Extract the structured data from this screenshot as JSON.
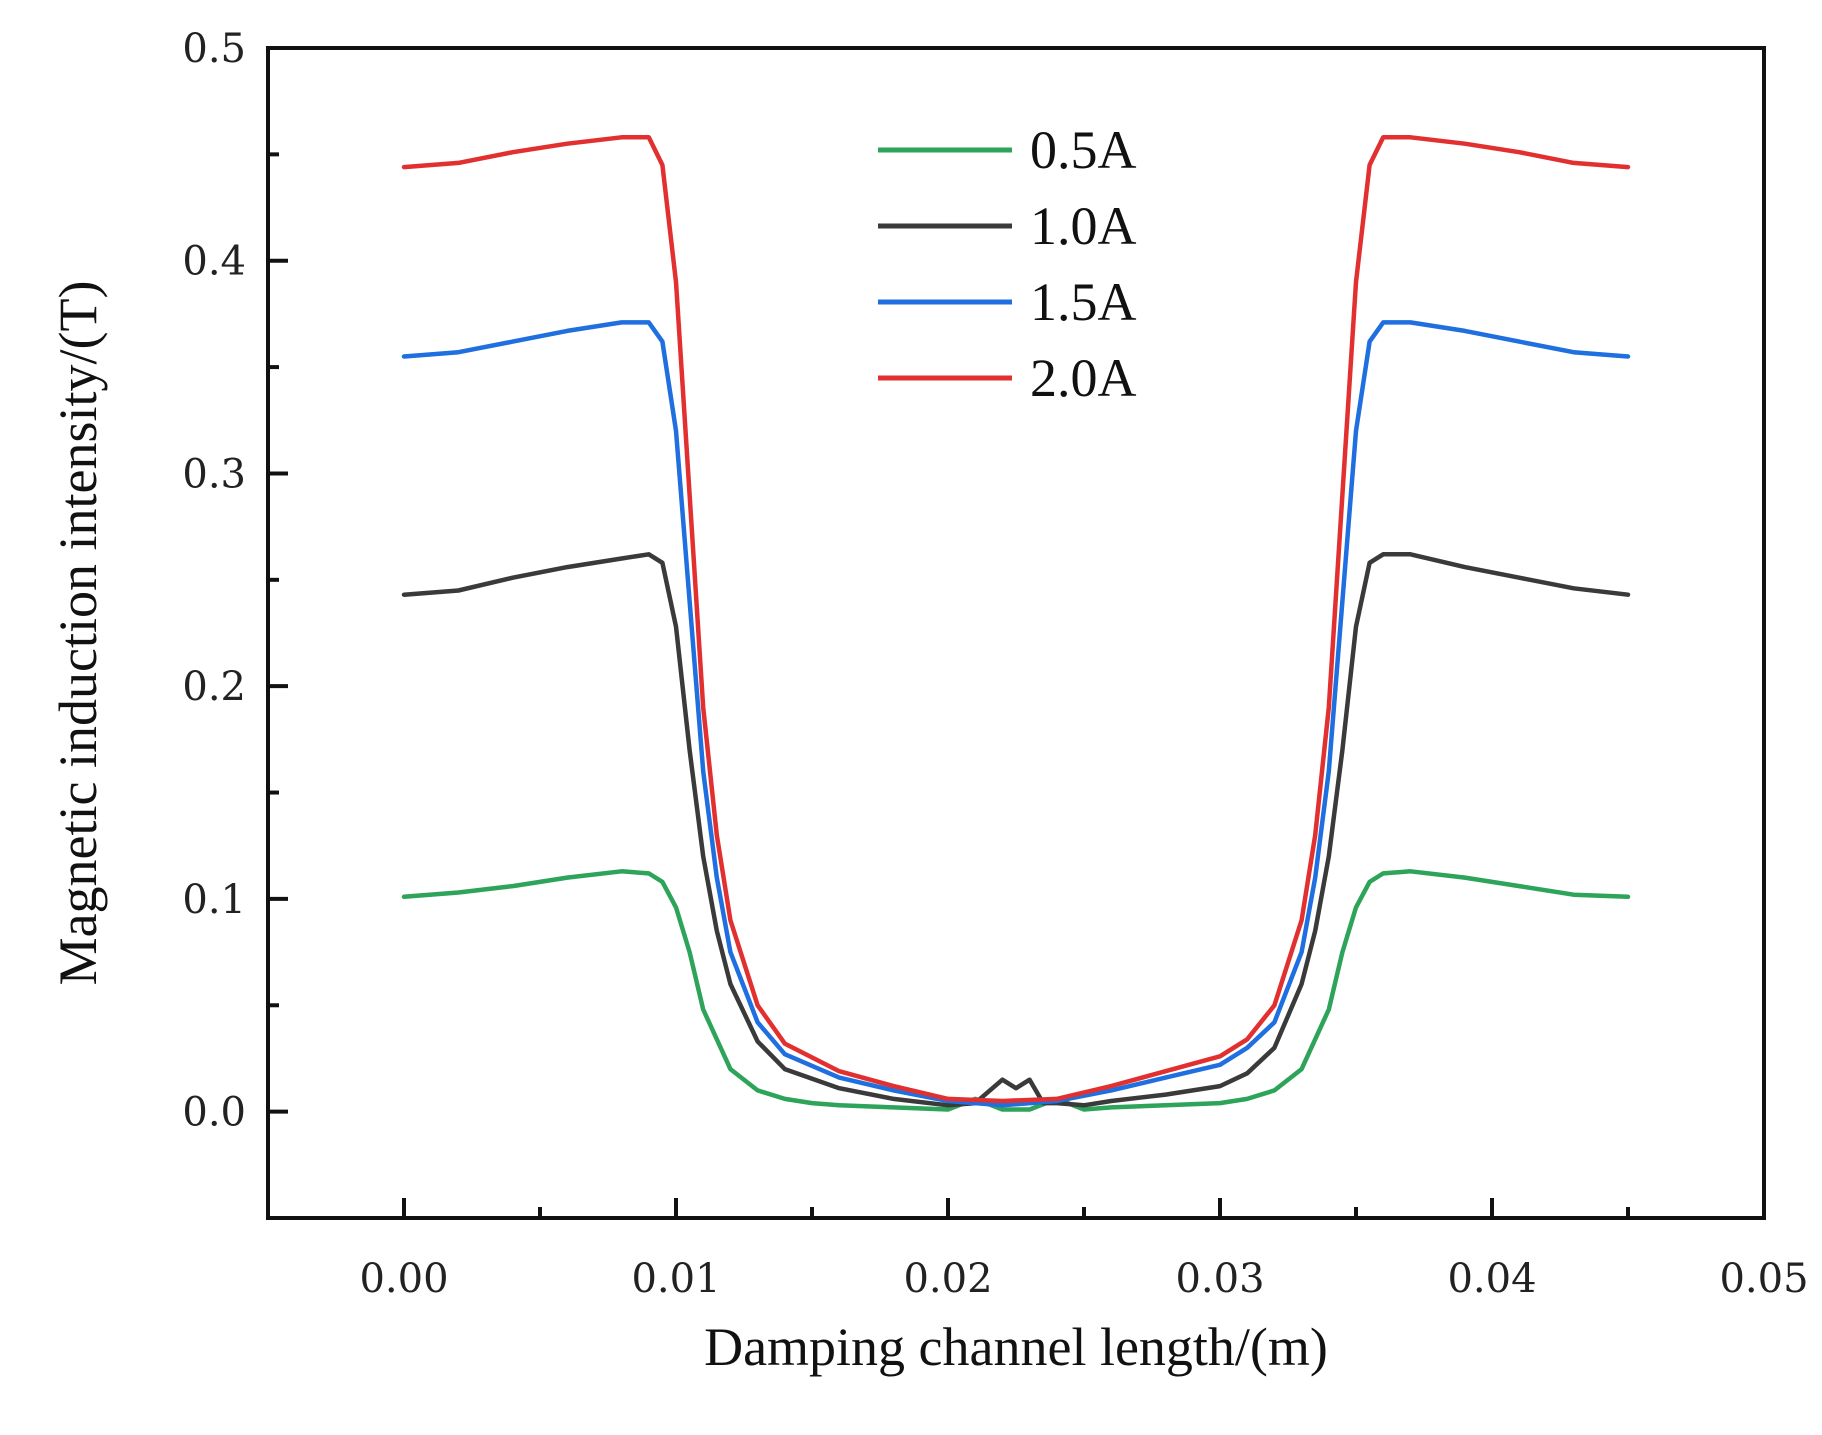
{
  "chart_data": {
    "type": "line",
    "title": "",
    "xlabel": "Damping channel length/(m)",
    "ylabel": "Magnetic induction intensity/(T)",
    "xlim": [
      -0.005,
      0.05
    ],
    "ylim": [
      -0.05,
      0.5
    ],
    "x_ticks": [
      0.0,
      0.01,
      0.02,
      0.03,
      0.04,
      0.05
    ],
    "x_tick_labels": [
      "0.00",
      "0.01",
      "0.02",
      "0.03",
      "0.04",
      "0.05"
    ],
    "y_ticks": [
      0.0,
      0.1,
      0.2,
      0.3,
      0.4,
      0.5
    ],
    "y_tick_labels": [
      "0.0",
      "0.1",
      "0.2",
      "0.3",
      "0.4",
      "0.5"
    ],
    "grid": false,
    "legend_position": "top-center",
    "series": [
      {
        "name": "0.5A",
        "color": "#2ea35a",
        "x": [
          0.0,
          0.002,
          0.004,
          0.006,
          0.008,
          0.009,
          0.0095,
          0.01,
          0.0105,
          0.011,
          0.012,
          0.013,
          0.014,
          0.015,
          0.016,
          0.018,
          0.02,
          0.021,
          0.022,
          0.023,
          0.024,
          0.025,
          0.026,
          0.028,
          0.03,
          0.031,
          0.032,
          0.033,
          0.034,
          0.0345,
          0.035,
          0.0355,
          0.036,
          0.037,
          0.039,
          0.041,
          0.043,
          0.045
        ],
        "y": [
          0.101,
          0.103,
          0.106,
          0.11,
          0.113,
          0.112,
          0.108,
          0.096,
          0.075,
          0.048,
          0.02,
          0.01,
          0.006,
          0.004,
          0.003,
          0.002,
          0.001,
          0.006,
          0.001,
          0.001,
          0.006,
          0.001,
          0.002,
          0.003,
          0.004,
          0.006,
          0.01,
          0.02,
          0.048,
          0.075,
          0.096,
          0.108,
          0.112,
          0.113,
          0.11,
          0.106,
          0.102,
          0.101
        ]
      },
      {
        "name": "1.0A",
        "color": "#3a3a3a",
        "x": [
          0.0,
          0.002,
          0.004,
          0.006,
          0.008,
          0.009,
          0.0095,
          0.01,
          0.0105,
          0.011,
          0.0115,
          0.012,
          0.013,
          0.014,
          0.016,
          0.018,
          0.02,
          0.021,
          0.022,
          0.0225,
          0.023,
          0.0235,
          0.024,
          0.025,
          0.026,
          0.028,
          0.03,
          0.031,
          0.032,
          0.033,
          0.0335,
          0.034,
          0.0345,
          0.035,
          0.0355,
          0.036,
          0.037,
          0.039,
          0.041,
          0.043,
          0.045
        ],
        "y": [
          0.243,
          0.245,
          0.251,
          0.256,
          0.26,
          0.262,
          0.258,
          0.228,
          0.17,
          0.12,
          0.085,
          0.06,
          0.033,
          0.02,
          0.011,
          0.006,
          0.003,
          0.004,
          0.015,
          0.011,
          0.015,
          0.004,
          0.004,
          0.003,
          0.005,
          0.008,
          0.012,
          0.018,
          0.03,
          0.06,
          0.085,
          0.12,
          0.17,
          0.228,
          0.258,
          0.262,
          0.262,
          0.256,
          0.251,
          0.246,
          0.243
        ]
      },
      {
        "name": "1.5A",
        "color": "#1f6fe0",
        "x": [
          0.0,
          0.002,
          0.004,
          0.006,
          0.008,
          0.009,
          0.0095,
          0.01,
          0.0105,
          0.011,
          0.0115,
          0.012,
          0.013,
          0.014,
          0.016,
          0.018,
          0.02,
          0.022,
          0.024,
          0.026,
          0.028,
          0.03,
          0.031,
          0.032,
          0.033,
          0.0335,
          0.034,
          0.0345,
          0.035,
          0.0355,
          0.036,
          0.037,
          0.039,
          0.041,
          0.043,
          0.045
        ],
        "y": [
          0.355,
          0.357,
          0.362,
          0.367,
          0.371,
          0.371,
          0.362,
          0.32,
          0.24,
          0.16,
          0.11,
          0.075,
          0.042,
          0.027,
          0.016,
          0.01,
          0.005,
          0.003,
          0.005,
          0.01,
          0.016,
          0.022,
          0.03,
          0.042,
          0.075,
          0.11,
          0.16,
          0.24,
          0.32,
          0.362,
          0.371,
          0.371,
          0.367,
          0.362,
          0.357,
          0.355
        ]
      },
      {
        "name": "2.0A",
        "color": "#e23030",
        "x": [
          0.0,
          0.002,
          0.004,
          0.006,
          0.008,
          0.009,
          0.0095,
          0.01,
          0.0105,
          0.011,
          0.0115,
          0.012,
          0.013,
          0.014,
          0.016,
          0.018,
          0.02,
          0.022,
          0.024,
          0.026,
          0.028,
          0.03,
          0.031,
          0.032,
          0.033,
          0.0335,
          0.034,
          0.0345,
          0.035,
          0.0355,
          0.036,
          0.037,
          0.039,
          0.041,
          0.043,
          0.045
        ],
        "y": [
          0.444,
          0.446,
          0.451,
          0.455,
          0.458,
          0.458,
          0.445,
          0.39,
          0.29,
          0.19,
          0.13,
          0.09,
          0.05,
          0.032,
          0.019,
          0.012,
          0.006,
          0.005,
          0.006,
          0.012,
          0.019,
          0.026,
          0.034,
          0.05,
          0.09,
          0.13,
          0.19,
          0.29,
          0.39,
          0.445,
          0.458,
          0.458,
          0.455,
          0.451,
          0.446,
          0.444
        ]
      }
    ]
  }
}
